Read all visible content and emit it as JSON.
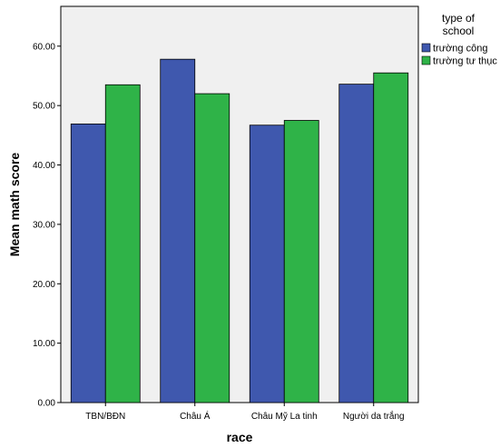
{
  "chart_data": {
    "type": "bar",
    "categories": [
      "TBN/BĐN",
      "Châu Á",
      "Châu Mỹ La tinh",
      "Người da trắng"
    ],
    "series": [
      {
        "name": "trường công",
        "values": [
          46.9,
          57.8,
          46.7,
          53.6
        ],
        "color": "#3f58ae"
      },
      {
        "name": "trường tư thục",
        "values": [
          53.5,
          52.0,
          47.5,
          55.5
        ],
        "color": "#2fb348"
      }
    ],
    "xlabel": "race",
    "ylabel": "Mean math score",
    "ylim": [
      0,
      66.7
    ],
    "yticks": [
      "0.00",
      "10.00",
      "20.00",
      "30.00",
      "40.00",
      "50.00",
      "60.00"
    ],
    "legend": {
      "title_line1": "type of",
      "title_line2": "school",
      "placement": "right"
    },
    "plot_background": "#f0f0f0",
    "grid": false
  }
}
